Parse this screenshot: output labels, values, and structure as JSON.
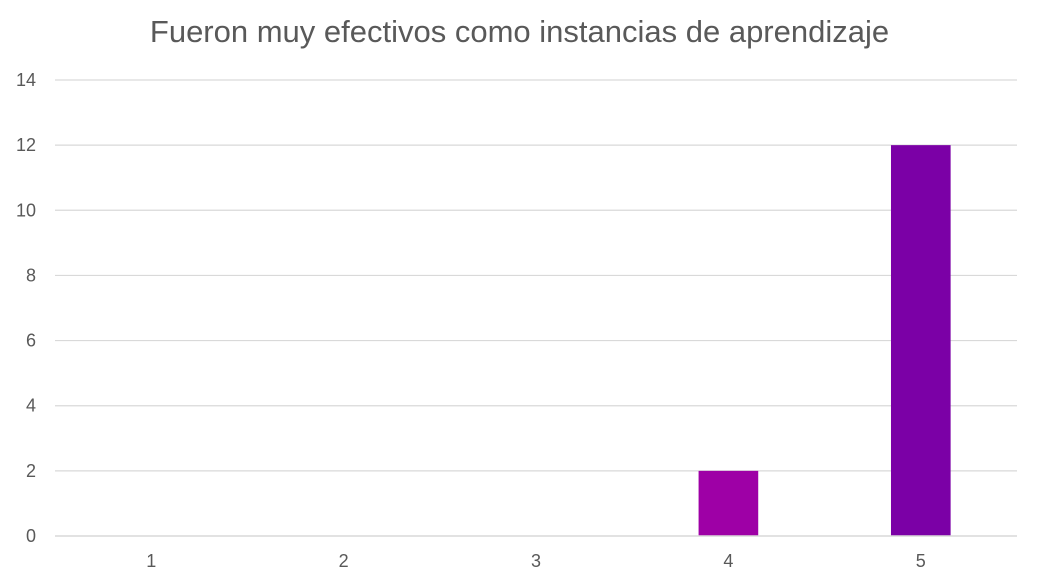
{
  "chart_data": {
    "type": "bar",
    "title": "Fueron muy efectivos como instancias de aprendizaje",
    "xlabel": "",
    "ylabel": "",
    "categories": [
      "1",
      "2",
      "3",
      "4",
      "5"
    ],
    "values": [
      0,
      0,
      0,
      2,
      12
    ],
    "colors": [
      "#9e00a6",
      "#9e00a6",
      "#9e00a6",
      "#9e00a6",
      "#7b00a6"
    ],
    "ylim": [
      0,
      14
    ],
    "yticks": [
      0,
      2,
      4,
      6,
      8,
      10,
      12,
      14
    ],
    "grid": true,
    "gridline_color": "#d9d9d9",
    "legend": "none"
  }
}
